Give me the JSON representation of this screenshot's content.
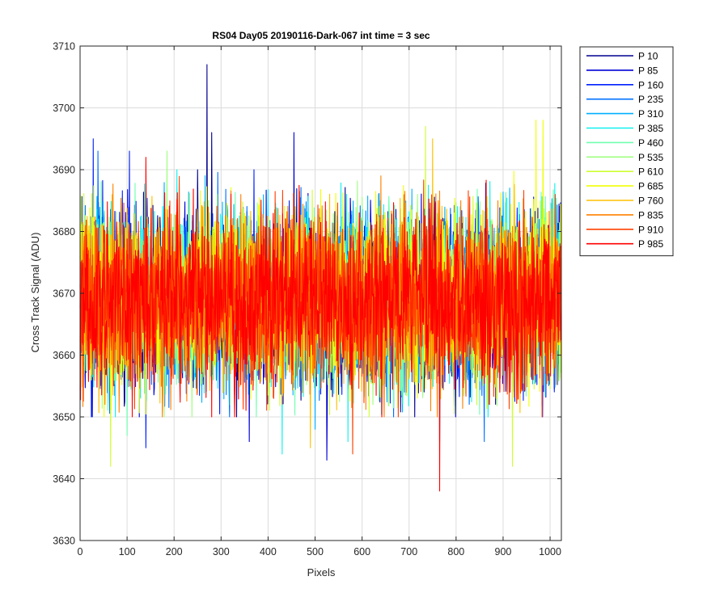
{
  "chart_data": {
    "type": "line",
    "title": "RS04 Day05 20190116-Dark-067 int time = 3 sec",
    "xlabel": "Pixels",
    "ylabel": "Cross Track Signal (ADU)",
    "xlim": [
      0,
      1024
    ],
    "ylim": [
      3630,
      3710
    ],
    "xticks": [
      0,
      100,
      200,
      300,
      400,
      500,
      600,
      700,
      800,
      900,
      1000
    ],
    "yticks": [
      3630,
      3640,
      3650,
      3660,
      3670,
      3680,
      3690,
      3700,
      3710
    ],
    "grid": true,
    "legend_position": "outside-top-right",
    "samples_per_series": 1024,
    "mean_level": 3669,
    "noise_std": 7,
    "series": [
      {
        "name": "P 10",
        "color": "#00008f",
        "extremes": [
          {
            "x": 270,
            "y": 3707
          },
          {
            "x": 280,
            "y": 3696
          },
          {
            "x": 250,
            "y": 3690
          }
        ]
      },
      {
        "name": "P 85",
        "color": "#0000d6",
        "extremes": [
          {
            "x": 455,
            "y": 3696
          },
          {
            "x": 525,
            "y": 3643
          },
          {
            "x": 360,
            "y": 3646
          }
        ]
      },
      {
        "name": "P 160",
        "color": "#0020ff",
        "extremes": [
          {
            "x": 28,
            "y": 3695
          },
          {
            "x": 105,
            "y": 3693
          },
          {
            "x": 140,
            "y": 3645
          }
        ]
      },
      {
        "name": "P 235",
        "color": "#0070ff",
        "extremes": [
          {
            "x": 38,
            "y": 3693
          },
          {
            "x": 860,
            "y": 3646
          }
        ]
      },
      {
        "name": "P 310",
        "color": "#00b0ff",
        "extremes": [
          {
            "x": 765,
            "y": 3646
          },
          {
            "x": 500,
            "y": 3648
          }
        ]
      },
      {
        "name": "P 385",
        "color": "#10f0ef",
        "extremes": [
          {
            "x": 430,
            "y": 3644
          },
          {
            "x": 570,
            "y": 3646
          }
        ]
      },
      {
        "name": "P 460",
        "color": "#70ffaf",
        "extremes": [
          {
            "x": 100,
            "y": 3647
          }
        ]
      },
      {
        "name": "P 535",
        "color": "#9fff7f",
        "extremes": [
          {
            "x": 185,
            "y": 3693
          }
        ]
      },
      {
        "name": "P 610",
        "color": "#cfff30",
        "extremes": [
          {
            "x": 65,
            "y": 3642
          },
          {
            "x": 920,
            "y": 3642
          },
          {
            "x": 735,
            "y": 3697
          }
        ]
      },
      {
        "name": "P 685",
        "color": "#f0ff00",
        "extremes": [
          {
            "x": 970,
            "y": 3698
          },
          {
            "x": 985,
            "y": 3698
          }
        ]
      },
      {
        "name": "P 760",
        "color": "#ffc000",
        "extremes": [
          {
            "x": 750,
            "y": 3695
          },
          {
            "x": 490,
            "y": 3645
          }
        ]
      },
      {
        "name": "P 835",
        "color": "#ff8000",
        "extremes": [
          {
            "x": 640,
            "y": 3689
          }
        ]
      },
      {
        "name": "P 910",
        "color": "#ff4000",
        "extremes": [
          {
            "x": 580,
            "y": 3644
          }
        ]
      },
      {
        "name": "P 985",
        "color": "#ff0000",
        "extremes": [
          {
            "x": 765,
            "y": 3638
          },
          {
            "x": 280,
            "y": 3650
          },
          {
            "x": 140,
            "y": 3692
          }
        ]
      }
    ]
  }
}
